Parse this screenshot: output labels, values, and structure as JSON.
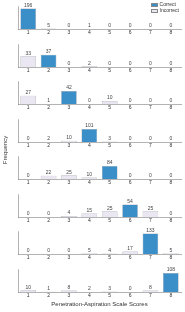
{
  "chart_data": [
    {
      "type": "bar",
      "stacked": true,
      "data_labels": true,
      "grid": false,
      "tick_labels": "x",
      "legend": "upper right",
      "categories": [
        1,
        2,
        3,
        4,
        5,
        6,
        7,
        8
      ],
      "ylim": [
        0,
        220
      ],
      "series": [
        {
          "name": "Correct",
          "color": "#3a8fc8",
          "values": [
            196,
            null,
            null,
            null,
            null,
            null,
            null,
            null
          ]
        },
        {
          "name": "Incorrect",
          "color": "#ebe7f2",
          "values": [
            null,
            5,
            0,
            1,
            0,
            0,
            0,
            0
          ]
        }
      ]
    },
    {
      "type": "bar",
      "stacked": true,
      "data_labels": true,
      "grid": false,
      "tick_labels": "x",
      "categories": [
        1,
        2,
        3,
        4,
        5,
        6,
        7,
        8
      ],
      "ylim": [
        0,
        70
      ],
      "series": [
        {
          "name": "Correct",
          "color": "#3a8fc8",
          "values": [
            null,
            37,
            null,
            null,
            null,
            null,
            null,
            null
          ]
        },
        {
          "name": "Incorrect",
          "color": "#ebe7f2",
          "values": [
            33,
            null,
            0,
            2,
            0,
            0,
            0,
            0
          ]
        }
      ]
    },
    {
      "type": "bar",
      "stacked": true,
      "data_labels": true,
      "grid": false,
      "tick_labels": "x",
      "categories": [
        1,
        2,
        3,
        4,
        5,
        6,
        7,
        8
      ],
      "ylim": [
        0,
        75
      ],
      "series": [
        {
          "name": "Correct",
          "color": "#3a8fc8",
          "values": [
            null,
            null,
            42,
            null,
            null,
            null,
            null,
            null
          ]
        },
        {
          "name": "Incorrect",
          "color": "#ebe7f2",
          "values": [
            27,
            1,
            null,
            0,
            10,
            0,
            0,
            0
          ]
        }
      ]
    },
    {
      "type": "bar",
      "stacked": true,
      "data_labels": true,
      "grid": false,
      "tick_labels": "x",
      "categories": [
        1,
        2,
        3,
        4,
        5,
        6,
        7,
        8
      ],
      "ylim": [
        0,
        180
      ],
      "series": [
        {
          "name": "Correct",
          "color": "#3a8fc8",
          "values": [
            null,
            null,
            null,
            101,
            null,
            null,
            null,
            null
          ]
        },
        {
          "name": "Incorrect",
          "color": "#ebe7f2",
          "values": [
            0,
            2,
            10,
            null,
            3,
            0,
            0,
            0
          ]
        }
      ]
    },
    {
      "type": "bar",
      "stacked": true,
      "data_labels": true,
      "grid": false,
      "tick_labels": "x",
      "categories": [
        1,
        2,
        3,
        4,
        5,
        6,
        7,
        8
      ],
      "ylim": [
        0,
        150
      ],
      "series": [
        {
          "name": "Correct",
          "color": "#3a8fc8",
          "values": [
            null,
            null,
            null,
            null,
            84,
            null,
            null,
            null
          ]
        },
        {
          "name": "Incorrect",
          "color": "#ebe7f2",
          "values": [
            0,
            22,
            25,
            10,
            null,
            0,
            0,
            0
          ]
        }
      ]
    },
    {
      "type": "bar",
      "stacked": true,
      "data_labels": true,
      "grid": false,
      "tick_labels": "x",
      "categories": [
        1,
        2,
        3,
        4,
        5,
        6,
        7,
        8
      ],
      "ylim": [
        0,
        100
      ],
      "series": [
        {
          "name": "Correct",
          "color": "#3a8fc8",
          "values": [
            null,
            null,
            null,
            null,
            null,
            54,
            null,
            null
          ]
        },
        {
          "name": "Incorrect",
          "color": "#ebe7f2",
          "values": [
            0,
            0,
            4,
            15,
            25,
            null,
            25,
            0
          ]
        }
      ]
    },
    {
      "type": "bar",
      "stacked": true,
      "data_labels": true,
      "grid": false,
      "tick_labels": "x",
      "categories": [
        1,
        2,
        3,
        4,
        5,
        6,
        7,
        8
      ],
      "ylim": [
        0,
        150
      ],
      "series": [
        {
          "name": "Correct",
          "color": "#3a8fc8",
          "values": [
            null,
            null,
            null,
            null,
            null,
            null,
            133,
            null
          ]
        },
        {
          "name": "Incorrect",
          "color": "#ebe7f2",
          "values": [
            0,
            0,
            0,
            5,
            4,
            17,
            null,
            5
          ]
        }
      ]
    },
    {
      "type": "bar",
      "stacked": true,
      "data_labels": true,
      "grid": false,
      "tick_labels": "x",
      "xlabel": "Penetration-Aspiration Scale Scores",
      "ylabel": "Frequency",
      "categories": [
        1,
        2,
        3,
        4,
        5,
        6,
        7,
        8
      ],
      "ylim": [
        0,
        130
      ],
      "series": [
        {
          "name": "Correct",
          "color": "#3a8fc8",
          "values": [
            null,
            null,
            null,
            null,
            null,
            null,
            null,
            108
          ]
        },
        {
          "name": "Incorrect",
          "color": "#ebe7f2",
          "values": [
            10,
            1,
            8,
            2,
            3,
            0,
            8,
            null
          ]
        }
      ]
    }
  ]
}
